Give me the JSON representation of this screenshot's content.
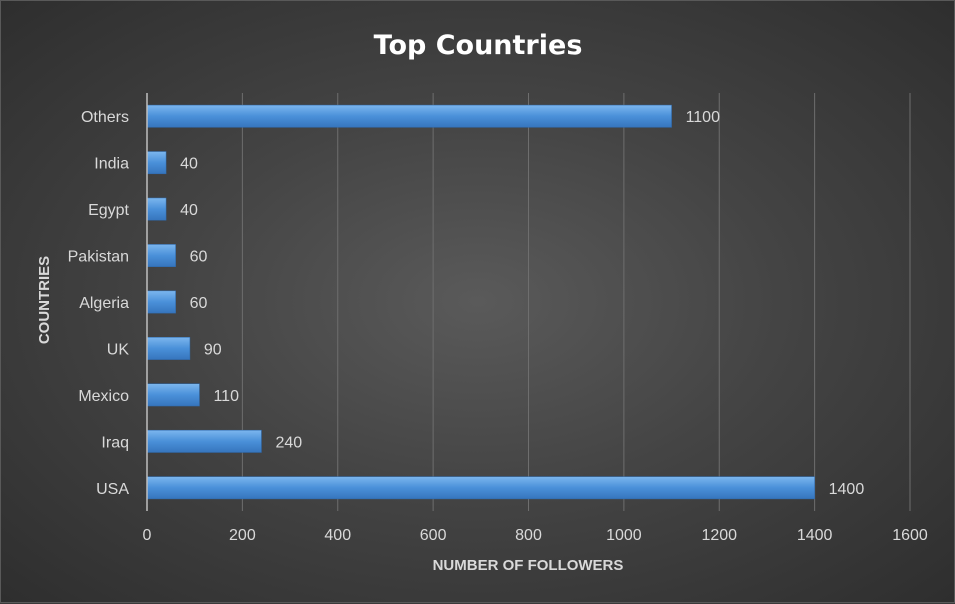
{
  "chart_data": {
    "type": "bar",
    "orientation": "horizontal",
    "title": "Top Countries",
    "xlabel": "NUMBER OF FOLLOWERS",
    "ylabel": "COUNTRIES",
    "categories": [
      "USA",
      "Iraq",
      "Mexico",
      "UK",
      "Algeria",
      "Pakistan",
      "Egypt",
      "India",
      "Others"
    ],
    "values": [
      1400,
      240,
      110,
      90,
      60,
      60,
      40,
      40,
      1100
    ],
    "xlim": [
      0,
      1600
    ],
    "xticks": [
      0,
      200,
      400,
      600,
      800,
      1000,
      1200,
      1400,
      1600
    ],
    "grid": true,
    "bar_color": "#4a90d9",
    "data_labels": true
  }
}
